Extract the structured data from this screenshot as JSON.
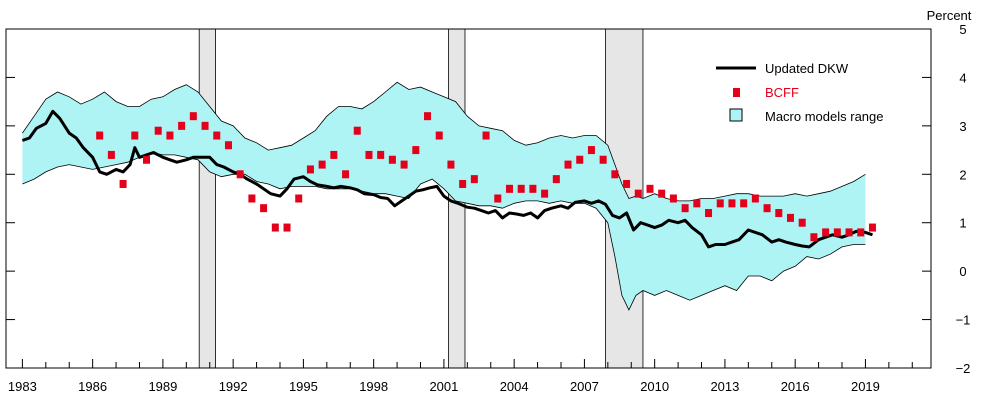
{
  "chart_data": {
    "type": "line",
    "title": "",
    "ylabel": "Percent",
    "xlabel": "",
    "xlim": [
      1982.3,
      2021.8
    ],
    "ylim": [
      -2,
      5
    ],
    "yticks": [
      -2,
      -1,
      0,
      1,
      2,
      3,
      4,
      5
    ],
    "xtick_labels": [
      "1983",
      "1986",
      "1989",
      "1992",
      "1995",
      "1998",
      "2001",
      "2004",
      "2007",
      "2010",
      "2013",
      "2016",
      "2019"
    ],
    "xtick_values": [
      1983,
      1986,
      1989,
      1992,
      1995,
      1998,
      2001,
      2004,
      2007,
      2010,
      2013,
      2016,
      2019
    ],
    "grid": false,
    "legend": {
      "position": "top-right",
      "entries": [
        "Updated DKW",
        "BCFF",
        "Macro models range"
      ]
    },
    "recessions": [
      [
        1990.55,
        1991.25
      ],
      [
        2001.2,
        2001.9
      ],
      [
        2007.9,
        2009.5
      ]
    ],
    "series": [
      {
        "name": "Updated DKW",
        "kind": "line",
        "color": "#000000",
        "x": [
          1983.0,
          1983.3,
          1983.6,
          1984.0,
          1984.3,
          1984.6,
          1985.0,
          1985.3,
          1985.6,
          1986.0,
          1986.3,
          1986.6,
          1987.0,
          1987.3,
          1987.6,
          1987.8,
          1988.0,
          1988.3,
          1988.6,
          1989.0,
          1989.3,
          1989.6,
          1990.0,
          1990.3,
          1990.6,
          1991.0,
          1991.3,
          1991.6,
          1992.0,
          1992.3,
          1992.6,
          1993.0,
          1993.3,
          1993.6,
          1994.0,
          1994.3,
          1994.6,
          1995.0,
          1995.3,
          1995.6,
          1996.0,
          1996.3,
          1996.6,
          1997.0,
          1997.3,
          1997.6,
          1998.0,
          1998.3,
          1998.6,
          1998.9,
          1999.2,
          1999.5,
          1999.8,
          2000.1,
          2000.4,
          2000.7,
          2001.0,
          2001.3,
          2001.6,
          2002.0,
          2002.3,
          2002.6,
          2002.9,
          2003.2,
          2003.5,
          2003.8,
          2004.1,
          2004.4,
          2004.7,
          2005.0,
          2005.3,
          2005.6,
          2006.0,
          2006.3,
          2006.6,
          2007.0,
          2007.3,
          2007.6,
          2007.9,
          2008.2,
          2008.5,
          2008.8,
          2009.1,
          2009.4,
          2009.7,
          2010.0,
          2010.3,
          2010.6,
          2011.0,
          2011.3,
          2011.6,
          2012.0,
          2012.3,
          2012.6,
          2013.0,
          2013.3,
          2013.6,
          2014.0,
          2014.3,
          2014.6,
          2015.0,
          2015.3,
          2015.6,
          2016.0,
          2016.3,
          2016.6,
          2017.0,
          2017.3,
          2017.6,
          2018.0,
          2018.3,
          2018.6,
          2019.0,
          2019.3
        ],
        "y": [
          2.7,
          2.75,
          2.95,
          3.05,
          3.3,
          3.15,
          2.85,
          2.75,
          2.55,
          2.35,
          2.05,
          2.0,
          2.1,
          2.05,
          2.2,
          2.55,
          2.35,
          2.4,
          2.45,
          2.35,
          2.3,
          2.25,
          2.3,
          2.35,
          2.35,
          2.35,
          2.2,
          2.15,
          2.05,
          2.0,
          1.9,
          1.8,
          1.7,
          1.6,
          1.55,
          1.7,
          1.9,
          1.95,
          1.85,
          1.78,
          1.75,
          1.72,
          1.75,
          1.72,
          1.68,
          1.6,
          1.58,
          1.52,
          1.5,
          1.35,
          1.45,
          1.55,
          1.65,
          1.68,
          1.72,
          1.75,
          1.55,
          1.45,
          1.4,
          1.32,
          1.3,
          1.25,
          1.2,
          1.25,
          1.1,
          1.2,
          1.18,
          1.15,
          1.2,
          1.1,
          1.25,
          1.3,
          1.35,
          1.3,
          1.42,
          1.45,
          1.4,
          1.45,
          1.38,
          1.15,
          1.1,
          1.2,
          0.85,
          1.0,
          0.95,
          0.9,
          0.95,
          1.05,
          1.0,
          1.05,
          0.9,
          0.75,
          0.5,
          0.55,
          0.55,
          0.6,
          0.65,
          0.85,
          0.8,
          0.75,
          0.6,
          0.65,
          0.6,
          0.55,
          0.52,
          0.5,
          0.65,
          0.7,
          0.75,
          0.7,
          0.75,
          0.82,
          0.8,
          0.75
        ]
      },
      {
        "name": "BCFF",
        "kind": "markers",
        "color": "#e3001b",
        "x": [
          1986.3,
          1986.8,
          1987.3,
          1987.8,
          1988.3,
          1988.8,
          1989.3,
          1989.8,
          1990.3,
          1990.8,
          1991.3,
          1991.8,
          1992.3,
          1992.8,
          1993.3,
          1993.8,
          1994.3,
          1994.8,
          1995.3,
          1995.8,
          1996.3,
          1996.8,
          1997.3,
          1997.8,
          1998.3,
          1998.8,
          1999.3,
          1999.8,
          2000.3,
          2000.8,
          2001.3,
          2001.8,
          2002.3,
          2002.8,
          2003.3,
          2003.8,
          2004.3,
          2004.8,
          2005.3,
          2005.8,
          2006.3,
          2006.8,
          2007.3,
          2007.8,
          2008.3,
          2008.8,
          2009.3,
          2009.8,
          2010.3,
          2010.8,
          2011.3,
          2011.8,
          2012.3,
          2012.8,
          2013.3,
          2013.8,
          2014.3,
          2014.8,
          2015.3,
          2015.8,
          2016.3,
          2016.8,
          2017.3,
          2017.8,
          2018.3,
          2018.8,
          2019.3
        ],
        "y": [
          2.8,
          2.4,
          1.8,
          2.8,
          2.3,
          2.9,
          2.8,
          3.0,
          3.2,
          3.0,
          2.8,
          2.6,
          2.0,
          1.5,
          1.3,
          0.9,
          0.9,
          1.5,
          2.1,
          2.2,
          2.4,
          2.0,
          2.9,
          2.4,
          2.4,
          2.3,
          2.2,
          2.5,
          3.2,
          2.8,
          2.2,
          1.8,
          1.9,
          2.8,
          1.5,
          1.7,
          1.7,
          1.7,
          1.6,
          1.9,
          2.2,
          2.3,
          2.5,
          2.3,
          2.0,
          1.8,
          1.6,
          1.7,
          1.6,
          1.5,
          1.3,
          1.4,
          1.2,
          1.4,
          1.4,
          1.4,
          1.5,
          1.3,
          1.2,
          1.1,
          1.0,
          0.7,
          0.8,
          0.8,
          0.8,
          0.8,
          0.9
        ]
      },
      {
        "name": "Macro models range",
        "kind": "band",
        "color": "#aef4f4",
        "x": [
          1983.0,
          1983.5,
          1984.0,
          1984.5,
          1985.0,
          1985.5,
          1986.0,
          1986.5,
          1987.0,
          1987.5,
          1988.0,
          1988.5,
          1989.0,
          1989.5,
          1990.0,
          1990.5,
          1991.0,
          1991.5,
          1992.0,
          1992.5,
          1993.0,
          1993.5,
          1994.0,
          1994.5,
          1995.0,
          1995.5,
          1996.0,
          1996.5,
          1997.0,
          1997.5,
          1998.0,
          1998.5,
          1999.0,
          1999.5,
          2000.0,
          2000.5,
          2001.0,
          2001.5,
          2002.0,
          2002.5,
          2003.0,
          2003.5,
          2004.0,
          2004.5,
          2005.0,
          2005.5,
          2006.0,
          2006.5,
          2007.0,
          2007.5,
          2008.0,
          2008.3,
          2008.6,
          2008.9,
          2009.2,
          2009.5,
          2010.0,
          2010.5,
          2011.0,
          2011.5,
          2012.0,
          2012.5,
          2013.0,
          2013.5,
          2014.0,
          2014.5,
          2015.0,
          2015.5,
          2016.0,
          2016.5,
          2017.0,
          2017.5,
          2018.0,
          2018.5,
          2019.0
        ],
        "low": [
          1.8,
          1.9,
          2.05,
          2.15,
          2.2,
          2.15,
          2.1,
          2.15,
          2.2,
          2.25,
          2.35,
          2.45,
          2.4,
          2.4,
          2.35,
          2.3,
          2.05,
          1.95,
          2.0,
          2.0,
          1.85,
          1.8,
          1.7,
          1.75,
          1.75,
          1.75,
          1.7,
          1.7,
          1.7,
          1.65,
          1.6,
          1.6,
          1.55,
          1.5,
          1.8,
          1.9,
          1.7,
          1.45,
          1.4,
          1.35,
          1.35,
          1.3,
          1.4,
          1.45,
          1.45,
          1.4,
          1.45,
          1.4,
          1.4,
          1.3,
          1.0,
          0.3,
          -0.5,
          -0.8,
          -0.5,
          -0.4,
          -0.5,
          -0.4,
          -0.5,
          -0.6,
          -0.5,
          -0.4,
          -0.3,
          -0.4,
          -0.1,
          -0.1,
          -0.2,
          0.0,
          0.1,
          0.3,
          0.25,
          0.35,
          0.5,
          0.55,
          0.55
        ],
        "high": [
          2.85,
          3.2,
          3.55,
          3.7,
          3.6,
          3.45,
          3.55,
          3.7,
          3.5,
          3.4,
          3.4,
          3.55,
          3.6,
          3.75,
          3.85,
          3.7,
          3.4,
          3.1,
          3.0,
          2.75,
          2.65,
          2.5,
          2.55,
          2.6,
          2.75,
          2.9,
          3.2,
          3.4,
          3.4,
          3.35,
          3.5,
          3.7,
          3.9,
          3.75,
          3.8,
          3.7,
          3.6,
          3.5,
          3.2,
          3.0,
          2.95,
          2.9,
          2.7,
          2.6,
          2.65,
          2.75,
          2.8,
          2.75,
          2.8,
          2.8,
          2.6,
          2.2,
          1.8,
          1.5,
          1.55,
          1.5,
          1.6,
          1.5,
          1.45,
          1.45,
          1.5,
          1.5,
          1.55,
          1.6,
          1.6,
          1.55,
          1.55,
          1.55,
          1.6,
          1.55,
          1.6,
          1.65,
          1.75,
          1.85,
          2.0
        ]
      }
    ]
  },
  "colors": {
    "band_fill": "#aef4f4",
    "recession_fill": "#e6e6e6",
    "marker": "#e3001b",
    "line": "#000000"
  }
}
